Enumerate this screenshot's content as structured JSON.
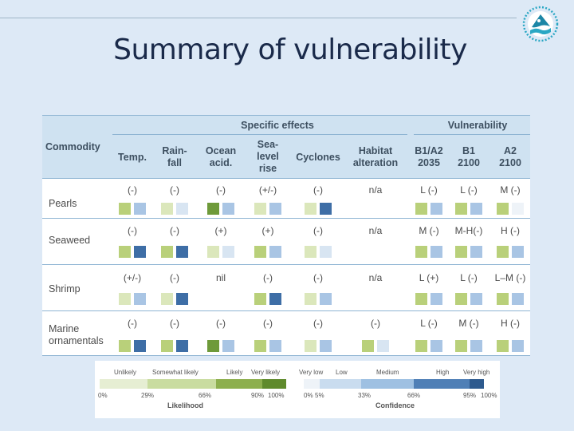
{
  "slide": {
    "title": "Summary of vulnerability"
  },
  "table": {
    "headers": {
      "specific_effects": "Specific effects",
      "vulnerability": "Vulnerability",
      "commodity": "Commodity",
      "temp": "Temp.",
      "rainfall": "Rain-\nfall",
      "ocean_acid": "Ocean\nacid.",
      "sea_level": "Sea-\nlevel\nrise",
      "cyclones": "Cyclones",
      "habitat": "Habitat\nalteration",
      "b1a2": "B1/A2\n2035",
      "b1": "B1\n2100",
      "a2": "A2\n2100"
    },
    "rows": [
      {
        "commodity": "Pearls",
        "effects": [
          "(-)",
          "(-)",
          "(-)",
          "(+/-)",
          "(-)",
          "n/a"
        ],
        "vulnerability": [
          "L (-)",
          "L (-)",
          "M (-)"
        ],
        "likelihood_colors": [
          "#b9d07a",
          "#dbe7bb",
          "#6e9a3a",
          "#dbe7bb",
          "#dbe7bb",
          "",
          "#b9d07a",
          "#b9d07a",
          "#b9d07a"
        ],
        "confidence_colors": [
          "#a9c5e4",
          "#d8e5f2",
          "#a9c5e4",
          "#a9c5e4",
          "#3e6ea6",
          "",
          "#a9c5e4",
          "#a9c5e4",
          "#eef3f8"
        ]
      },
      {
        "commodity": "Seaweed",
        "effects": [
          "(-)",
          "(-)",
          "(+)",
          "(+)",
          "(-)",
          "n/a"
        ],
        "vulnerability": [
          "M (-)",
          "M-H(-)",
          "H (-)"
        ],
        "likelihood_colors": [
          "#b9d07a",
          "#b9d07a",
          "#dbe7bb",
          "#b9d07a",
          "#dbe7bb",
          "",
          "#b9d07a",
          "#b9d07a",
          "#b9d07a"
        ],
        "confidence_colors": [
          "#3e6ea6",
          "#3e6ea6",
          "#d8e5f2",
          "#a9c5e4",
          "#d8e5f2",
          "",
          "#a9c5e4",
          "#a9c5e4",
          "#a9c5e4"
        ]
      },
      {
        "commodity": "Shrimp",
        "effects": [
          "(+/-)",
          "(-)",
          "nil",
          "(-)",
          "(-)",
          "n/a"
        ],
        "vulnerability": [
          "L (+)",
          "L (-)",
          "L–M (-)"
        ],
        "likelihood_colors": [
          "#dbe7bb",
          "#dbe7bb",
          "",
          "#b9d07a",
          "#dbe7bb",
          "",
          "#b9d07a",
          "#b9d07a",
          "#b9d07a"
        ],
        "confidence_colors": [
          "#a9c5e4",
          "#3e6ea6",
          "",
          "#3e6ea6",
          "#a9c5e4",
          "",
          "#a9c5e4",
          "#a9c5e4",
          "#a9c5e4"
        ]
      },
      {
        "commodity": "Marine\nornamentals",
        "effects": [
          "(-)",
          "(-)",
          "(-)",
          "(-)",
          "(-)",
          "(-)"
        ],
        "vulnerability": [
          "L (-)",
          "M (-)",
          "H (-)"
        ],
        "likelihood_colors": [
          "#b9d07a",
          "#b9d07a",
          "#6e9a3a",
          "#b9d07a",
          "#dbe7bb",
          "#b9d07a",
          "#b9d07a",
          "#b9d07a",
          "#b9d07a"
        ],
        "confidence_colors": [
          "#3e6ea6",
          "#3e6ea6",
          "#a9c5e4",
          "#a9c5e4",
          "#a9c5e4",
          "#d8e5f2",
          "#a9c5e4",
          "#a9c5e4",
          "#a9c5e4"
        ]
      }
    ]
  },
  "legend": {
    "likelihood": {
      "labels": [
        "Unlikely",
        "Somewhat likely",
        "Likely",
        "Very likely"
      ],
      "ticks": [
        "0%",
        "29%",
        "66%",
        "90%",
        "100%"
      ],
      "title": "Likelihood",
      "colors": [
        "#e6eed3",
        "#c9dca0",
        "#8daf4e",
        "#5f8a2c"
      ]
    },
    "confidence": {
      "labels": [
        "Very low",
        "Low",
        "Medium",
        "High",
        "Very high"
      ],
      "ticks": [
        "0%",
        "5%",
        "33%",
        "66%",
        "95%",
        "100%"
      ],
      "title": "Confidence",
      "colors": [
        "#eef3f8",
        "#c9dcef",
        "#9ec0e2",
        "#4f7fb6",
        "#2d5a8e"
      ]
    }
  }
}
